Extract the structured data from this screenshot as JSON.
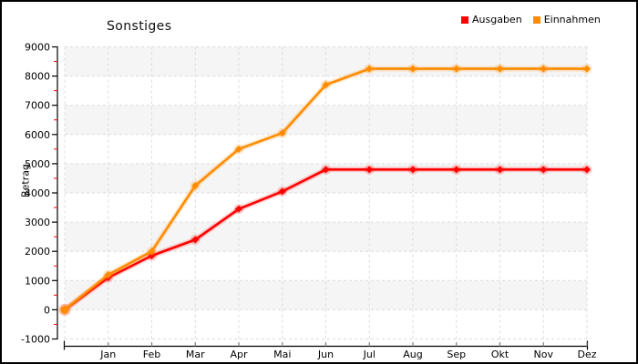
{
  "window": {
    "background": "#ffffff",
    "border_color": "#000000"
  },
  "chart_data": {
    "type": "line",
    "title": "Sonstiges",
    "xlabel": "",
    "ylabel": "Betrag",
    "categories": [
      "",
      "Jan",
      "Feb",
      "Mar",
      "Apr",
      "Mai",
      "Jun",
      "Jul",
      "Aug",
      "Sep",
      "Okt",
      "Nov",
      "Dez"
    ],
    "series": [
      {
        "name": "Ausgaben",
        "color": "#ff0000",
        "values": [
          0,
          1100,
          1850,
          2400,
          3450,
          4050,
          4800,
          4800,
          4800,
          4800,
          4800,
          4800,
          4800
        ]
      },
      {
        "name": "Einnahmen",
        "color": "#ff8c00",
        "values": [
          0,
          1200,
          2000,
          4250,
          5500,
          6050,
          7700,
          8250,
          8250,
          8250,
          8250,
          8250,
          8250
        ]
      }
    ],
    "ylim": [
      -1000,
      9000
    ],
    "y_tick_step": 1000,
    "y_minor_tick_step": 500,
    "grid": true,
    "legend_position": "top-right",
    "styles": {
      "band_color": "#f5f5f5",
      "grid_color": "#dcdcdc",
      "axis_color": "#000000",
      "month_tick_color": "#808080",
      "minor_tick_color": "#ff0000",
      "text_color": "#000000"
    }
  }
}
